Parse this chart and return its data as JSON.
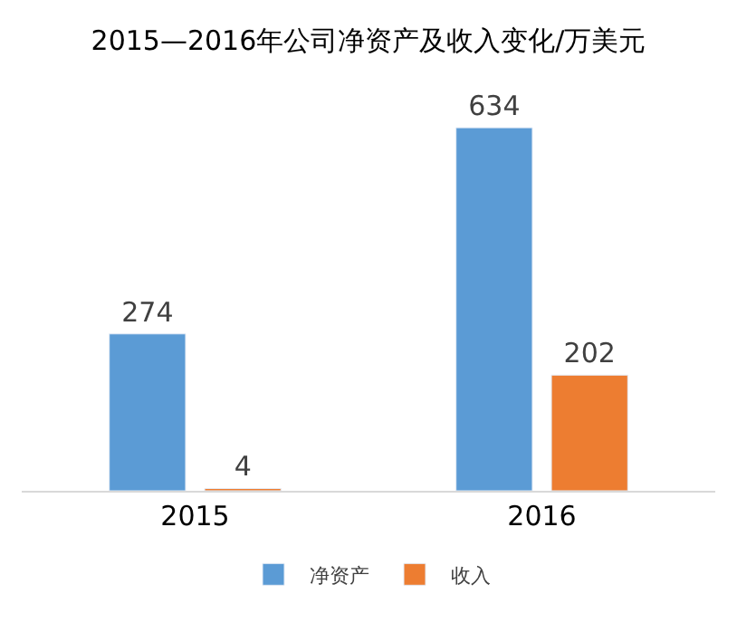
{
  "chart_data": {
    "type": "bar",
    "title": "2015—2016年公司净资产及收入变化/万美元",
    "categories": [
      "2015",
      "2016"
    ],
    "series": [
      {
        "name": "净资产",
        "color": "#5b9bd5",
        "values": [
          274,
          634
        ]
      },
      {
        "name": "收入",
        "color": "#ed7d31",
        "values": [
          4,
          202
        ]
      }
    ],
    "data_labels": true,
    "legend": "bottom"
  }
}
